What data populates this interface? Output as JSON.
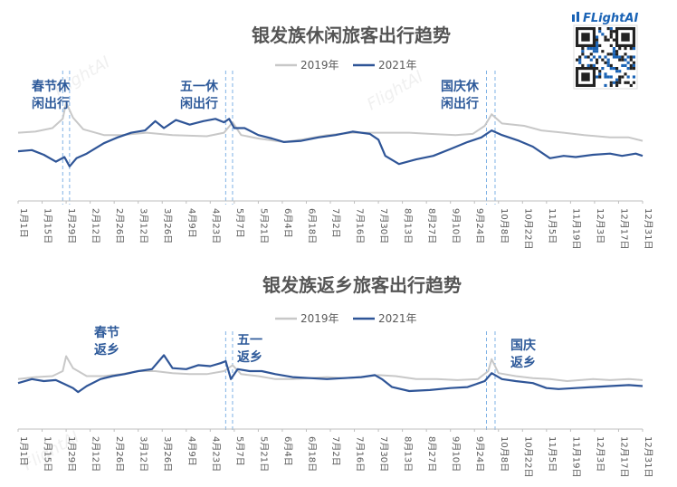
{
  "brand": {
    "name": "FLightAI",
    "watermark": "FlightAI"
  },
  "colors": {
    "series_2019": "#c8c8c8",
    "series_2021": "#2f5597",
    "guide": "#7fb2e5",
    "axis": "#bfbfbf"
  },
  "chart_data": [
    {
      "type": "line",
      "title": "银发族休闲旅客出行趋势",
      "x_tick_labels": [
        "1月1日",
        "1月15日",
        "1月29日",
        "2月12日",
        "2月26日",
        "3月12日",
        "3月26日",
        "4月9日",
        "4月23日",
        "5月7日",
        "5月21日",
        "6月4日",
        "6月18日",
        "7月2日",
        "7月16日",
        "7月30日",
        "8月13日",
        "8月27日",
        "9月10日",
        "9月24日",
        "10月8日",
        "10月22日",
        "11月5日",
        "11月19日",
        "12月3日",
        "12月17日",
        "12月31日"
      ],
      "legend": [
        "2019年",
        "2021年"
      ],
      "annotations": [
        {
          "lines": [
            "春节休",
            "闲出行"
          ],
          "day": 28
        },
        {
          "lines": [
            "五一休",
            "闲出行"
          ],
          "day": 123
        },
        {
          "lines": [
            "国庆休",
            "闲出行"
          ],
          "day": 276
        }
      ],
      "guide_days": [
        26,
        30,
        121,
        125,
        273,
        278
      ],
      "series": [
        {
          "name": "2019年",
          "points": [
            [
              0,
              0.62
            ],
            [
              10,
              0.63
            ],
            [
              20,
              0.66
            ],
            [
              26,
              0.74
            ],
            [
              28,
              0.88
            ],
            [
              32,
              0.75
            ],
            [
              38,
              0.65
            ],
            [
              50,
              0.6
            ],
            [
              60,
              0.6
            ],
            [
              75,
              0.62
            ],
            [
              90,
              0.6
            ],
            [
              110,
              0.59
            ],
            [
              120,
              0.62
            ],
            [
              125,
              0.71
            ],
            [
              130,
              0.6
            ],
            [
              140,
              0.57
            ],
            [
              155,
              0.54
            ],
            [
              165,
              0.56
            ],
            [
              180,
              0.6
            ],
            [
              195,
              0.62
            ],
            [
              205,
              0.62
            ],
            [
              215,
              0.62
            ],
            [
              228,
              0.62
            ],
            [
              240,
              0.61
            ],
            [
              255,
              0.6
            ],
            [
              265,
              0.61
            ],
            [
              272,
              0.68
            ],
            [
              276,
              0.78
            ],
            [
              282,
              0.7
            ],
            [
              295,
              0.68
            ],
            [
              305,
              0.64
            ],
            [
              318,
              0.62
            ],
            [
              330,
              0.6
            ],
            [
              345,
              0.58
            ],
            [
              356,
              0.58
            ],
            [
              364,
              0.55
            ]
          ]
        },
        {
          "name": "2021年",
          "points": [
            [
              0,
              0.46
            ],
            [
              8,
              0.47
            ],
            [
              15,
              0.43
            ],
            [
              22,
              0.37
            ],
            [
              27,
              0.41
            ],
            [
              30,
              0.33
            ],
            [
              34,
              0.4
            ],
            [
              40,
              0.44
            ],
            [
              50,
              0.53
            ],
            [
              58,
              0.58
            ],
            [
              66,
              0.62
            ],
            [
              74,
              0.64
            ],
            [
              80,
              0.72
            ],
            [
              85,
              0.66
            ],
            [
              92,
              0.73
            ],
            [
              100,
              0.69
            ],
            [
              108,
              0.72
            ],
            [
              115,
              0.74
            ],
            [
              120,
              0.71
            ],
            [
              123,
              0.74
            ],
            [
              126,
              0.66
            ],
            [
              132,
              0.66
            ],
            [
              140,
              0.6
            ],
            [
              148,
              0.57
            ],
            [
              155,
              0.54
            ],
            [
              165,
              0.55
            ],
            [
              175,
              0.58
            ],
            [
              185,
              0.6
            ],
            [
              195,
              0.63
            ],
            [
              205,
              0.61
            ],
            [
              210,
              0.56
            ],
            [
              214,
              0.42
            ],
            [
              222,
              0.35
            ],
            [
              232,
              0.39
            ],
            [
              242,
              0.42
            ],
            [
              252,
              0.48
            ],
            [
              262,
              0.54
            ],
            [
              270,
              0.58
            ],
            [
              276,
              0.64
            ],
            [
              282,
              0.6
            ],
            [
              292,
              0.55
            ],
            [
              300,
              0.5
            ],
            [
              310,
              0.4
            ],
            [
              318,
              0.42
            ],
            [
              325,
              0.41
            ],
            [
              335,
              0.43
            ],
            [
              345,
              0.44
            ],
            [
              352,
              0.42
            ],
            [
              360,
              0.44
            ],
            [
              364,
              0.42
            ]
          ]
        }
      ]
    },
    {
      "type": "line",
      "title": "银发族返乡旅客出行趋势",
      "x_tick_labels": [
        "1月1日",
        "1月15日",
        "1月29日",
        "2月12日",
        "2月26日",
        "3月12日",
        "3月26日",
        "4月9日",
        "4月23日",
        "5月7日",
        "5月21日",
        "6月4日",
        "6月18日",
        "7月2日",
        "7月16日",
        "7月30日",
        "8月13日",
        "8月27日",
        "9月10日",
        "9月24日",
        "10月8日",
        "10月22日",
        "11月5日",
        "11月19日",
        "12月3日",
        "12月17日",
        "12月31日"
      ],
      "legend": [
        "2019年",
        "2021年"
      ],
      "annotations": [
        {
          "lines": [
            "春节",
            "返乡"
          ],
          "day": 50
        },
        {
          "lines": [
            "五一",
            "返乡"
          ],
          "day": 134
        },
        {
          "lines": [
            "国庆",
            "返乡"
          ],
          "day": 295
        }
      ],
      "guide_days": [
        121,
        125,
        273,
        278
      ],
      "series": [
        {
          "name": "2019年",
          "points": [
            [
              0,
              0.52
            ],
            [
              10,
              0.54
            ],
            [
              20,
              0.55
            ],
            [
              26,
              0.6
            ],
            [
              28,
              0.75
            ],
            [
              32,
              0.63
            ],
            [
              40,
              0.55
            ],
            [
              50,
              0.55
            ],
            [
              60,
              0.57
            ],
            [
              70,
              0.6
            ],
            [
              80,
              0.6
            ],
            [
              90,
              0.58
            ],
            [
              100,
              0.57
            ],
            [
              110,
              0.57
            ],
            [
              120,
              0.6
            ],
            [
              125,
              0.66
            ],
            [
              130,
              0.57
            ],
            [
              140,
              0.55
            ],
            [
              150,
              0.52
            ],
            [
              160,
              0.52
            ],
            [
              170,
              0.53
            ],
            [
              180,
              0.54
            ],
            [
              190,
              0.53
            ],
            [
              200,
              0.54
            ],
            [
              210,
              0.56
            ],
            [
              220,
              0.55
            ],
            [
              232,
              0.52
            ],
            [
              244,
              0.52
            ],
            [
              256,
              0.51
            ],
            [
              268,
              0.52
            ],
            [
              274,
              0.6
            ],
            [
              276,
              0.72
            ],
            [
              280,
              0.58
            ],
            [
              290,
              0.55
            ],
            [
              300,
              0.53
            ],
            [
              310,
              0.52
            ],
            [
              320,
              0.5
            ],
            [
              335,
              0.52
            ],
            [
              345,
              0.51
            ],
            [
              356,
              0.52
            ],
            [
              364,
              0.51
            ]
          ]
        },
        {
          "name": "2021年",
          "points": [
            [
              0,
              0.48
            ],
            [
              8,
              0.52
            ],
            [
              15,
              0.5
            ],
            [
              22,
              0.51
            ],
            [
              27,
              0.47
            ],
            [
              32,
              0.43
            ],
            [
              35,
              0.39
            ],
            [
              40,
              0.45
            ],
            [
              48,
              0.52
            ],
            [
              55,
              0.55
            ],
            [
              62,
              0.57
            ],
            [
              70,
              0.6
            ],
            [
              78,
              0.62
            ],
            [
              85,
              0.76
            ],
            [
              90,
              0.63
            ],
            [
              98,
              0.62
            ],
            [
              105,
              0.66
            ],
            [
              112,
              0.65
            ],
            [
              118,
              0.68
            ],
            [
              121,
              0.7
            ],
            [
              124,
              0.52
            ],
            [
              128,
              0.62
            ],
            [
              135,
              0.6
            ],
            [
              142,
              0.6
            ],
            [
              150,
              0.57
            ],
            [
              160,
              0.54
            ],
            [
              170,
              0.53
            ],
            [
              180,
              0.52
            ],
            [
              190,
              0.53
            ],
            [
              200,
              0.54
            ],
            [
              208,
              0.56
            ],
            [
              212,
              0.52
            ],
            [
              218,
              0.44
            ],
            [
              228,
              0.4
            ],
            [
              240,
              0.41
            ],
            [
              252,
              0.43
            ],
            [
              262,
              0.44
            ],
            [
              272,
              0.5
            ],
            [
              276,
              0.58
            ],
            [
              282,
              0.52
            ],
            [
              290,
              0.5
            ],
            [
              300,
              0.48
            ],
            [
              308,
              0.43
            ],
            [
              315,
              0.42
            ],
            [
              325,
              0.43
            ],
            [
              335,
              0.44
            ],
            [
              345,
              0.45
            ],
            [
              356,
              0.46
            ],
            [
              364,
              0.45
            ]
          ]
        }
      ]
    }
  ]
}
